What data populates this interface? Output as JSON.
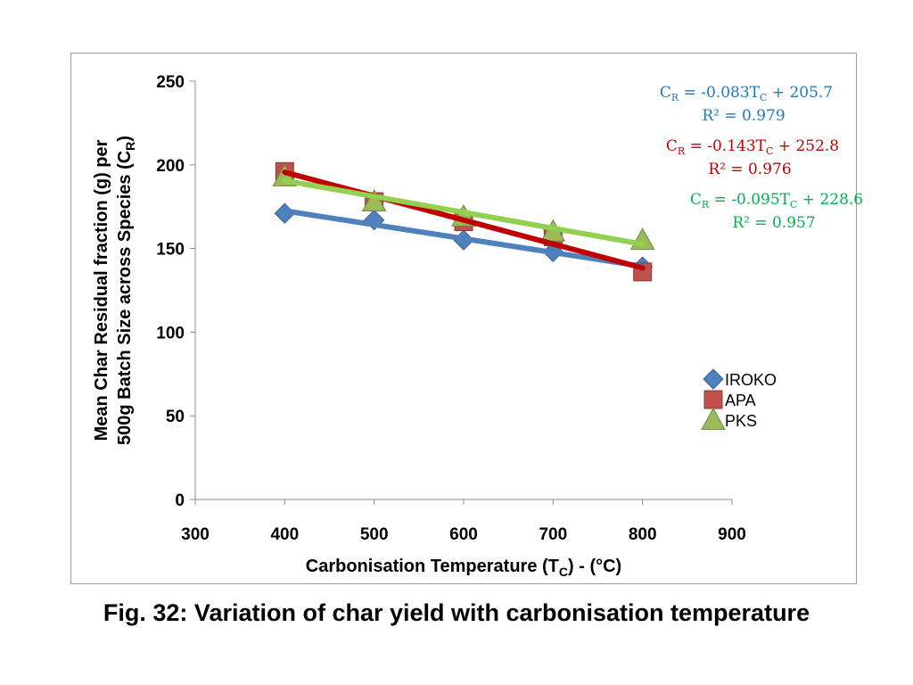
{
  "caption": "Fig. 32: Variation of char yield with carbonisation temperature",
  "chart_data": {
    "type": "scatter",
    "x_axis": {
      "ticks": [
        300,
        400,
        500,
        600,
        700,
        800,
        900
      ],
      "range": [
        300,
        900
      ],
      "title_main": "Carbonisation Temperature (T",
      "title_sub": "C",
      "title_end": ") - (°C)"
    },
    "y_axis": {
      "ticks": [
        0,
        50,
        100,
        150,
        200,
        250
      ],
      "range": [
        0,
        250
      ],
      "title_line1": "Mean Char Residual fraction (g) per",
      "title_line2_main": "500g Batch Size across Species (C",
      "title_line2_sub": "R",
      "title_line2_end": ")"
    },
    "grid": false,
    "legend_position": "right",
    "series": [
      {
        "name": "IROKO",
        "marker": "diamond",
        "color": "#4f81bd",
        "x": [
          400,
          500,
          600,
          700,
          800
        ],
        "y": [
          171,
          167,
          155,
          148,
          139
        ],
        "trendline": {
          "slope": -0.083,
          "intercept": 205.7,
          "color": "#4f81bd"
        },
        "equation": {
          "lhs": "C",
          "lhs_sub": "R",
          "rhs": " = -0.083T",
          "rhs_sub": "C",
          "tail": " + 205.7",
          "r2": "R² = 0.979",
          "color": "#1f77c4"
        }
      },
      {
        "name": "APA",
        "marker": "square",
        "color": "#c0504d",
        "x": [
          400,
          500,
          600,
          700,
          800
        ],
        "y": [
          196,
          178,
          166,
          157,
          136
        ],
        "trendline": {
          "slope": -0.143,
          "intercept": 252.8,
          "color": "#c00000"
        },
        "equation": {
          "lhs": "C",
          "lhs_sub": "R",
          "rhs": " = -0.143T",
          "rhs_sub": "C",
          "tail": " + 252.8",
          "r2": "R² = 0.976",
          "color": "#c00000"
        }
      },
      {
        "name": "PKS",
        "marker": "triangle",
        "color": "#9bbb59",
        "x": [
          400,
          500,
          600,
          700,
          800
        ],
        "y": [
          193,
          178,
          169,
          160,
          155
        ],
        "trendline": {
          "slope": -0.095,
          "intercept": 228.6,
          "color": "#92d050"
        },
        "equation": {
          "lhs": "C",
          "lhs_sub": "R",
          "rhs": " = -0.095T",
          "rhs_sub": "C",
          "tail": " + 228.6",
          "r2": "R² = 0.957",
          "color": "#00b050"
        }
      }
    ]
  }
}
